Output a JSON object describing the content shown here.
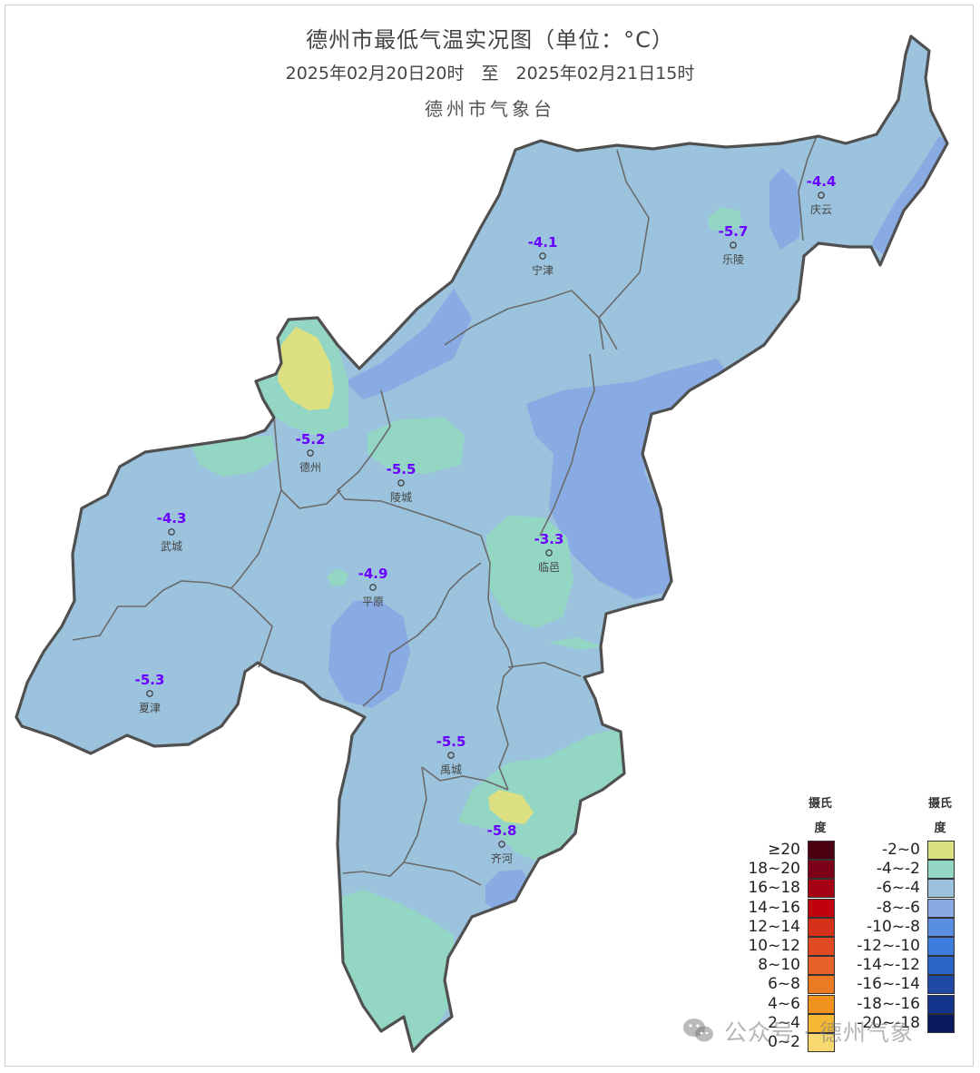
{
  "header": {
    "title": "德州市最低气温实况图（单位：°C）",
    "subtitle": "2025年02月20日20时　至　2025年02月21日15时",
    "agency": "德州市气象台"
  },
  "stations": [
    {
      "name": "庆云",
      "value": "-4.4"
    },
    {
      "name": "宁津",
      "value": "-4.1"
    },
    {
      "name": "乐陵",
      "value": "-5.7"
    },
    {
      "name": "德州",
      "value": "-5.2"
    },
    {
      "name": "陵城",
      "value": "-5.5"
    },
    {
      "name": "武城",
      "value": "-4.3"
    },
    {
      "name": "临邑",
      "value": "-3.3"
    },
    {
      "name": "平原",
      "value": "-4.9"
    },
    {
      "name": "夏津",
      "value": "-5.3"
    },
    {
      "name": "禹城",
      "value": "-5.5"
    },
    {
      "name": "齐河",
      "value": "-5.8"
    }
  ],
  "legend": {
    "unit_left": [
      "摄氏",
      "度"
    ],
    "unit_right": [
      "摄氏",
      "度"
    ],
    "warm": [
      {
        "label": "≥20",
        "color": "#4a0010"
      },
      {
        "label": "18~20",
        "color": "#7d0018"
      },
      {
        "label": "16~18",
        "color": "#a50013"
      },
      {
        "label": "14~16",
        "color": "#c10010"
      },
      {
        "label": "12~14",
        "color": "#d4301a"
      },
      {
        "label": "10~12",
        "color": "#e04a22"
      },
      {
        "label": "8~10",
        "color": "#e8602a"
      },
      {
        "label": "6~8",
        "color": "#ec7a22"
      },
      {
        "label": "4~6",
        "color": "#f0921e"
      },
      {
        "label": "2~4",
        "color": "#f5b833"
      },
      {
        "label": "0~2",
        "color": "#f8d870"
      }
    ],
    "cold": [
      {
        "label": "-2~0",
        "color": "#dde080"
      },
      {
        "label": "-4~-2",
        "color": "#94d6c4"
      },
      {
        "label": "-6~-4",
        "color": "#9cc3dd"
      },
      {
        "label": "-8~-6",
        "color": "#88abe4"
      },
      {
        "label": "-10~-8",
        "color": "#5a8ee0"
      },
      {
        "label": "-12~-10",
        "color": "#3b7cdc"
      },
      {
        "label": "-14~-12",
        "color": "#2a64c4"
      },
      {
        "label": "-16~-14",
        "color": "#1e4aa6"
      },
      {
        "label": "-18~-16",
        "color": "#14338a"
      },
      {
        "label": "-20~-18",
        "color": "#0a1a5e"
      }
    ]
  },
  "watermark": "公众号 · 德州气象",
  "colors": {
    "base": "#9cc3dd",
    "cold_zone": "#88abe4",
    "warm_zone": "#94d6c4",
    "warmest_zone": "#dde080",
    "boundary": "#555555",
    "station_value": "#6a00ff"
  }
}
